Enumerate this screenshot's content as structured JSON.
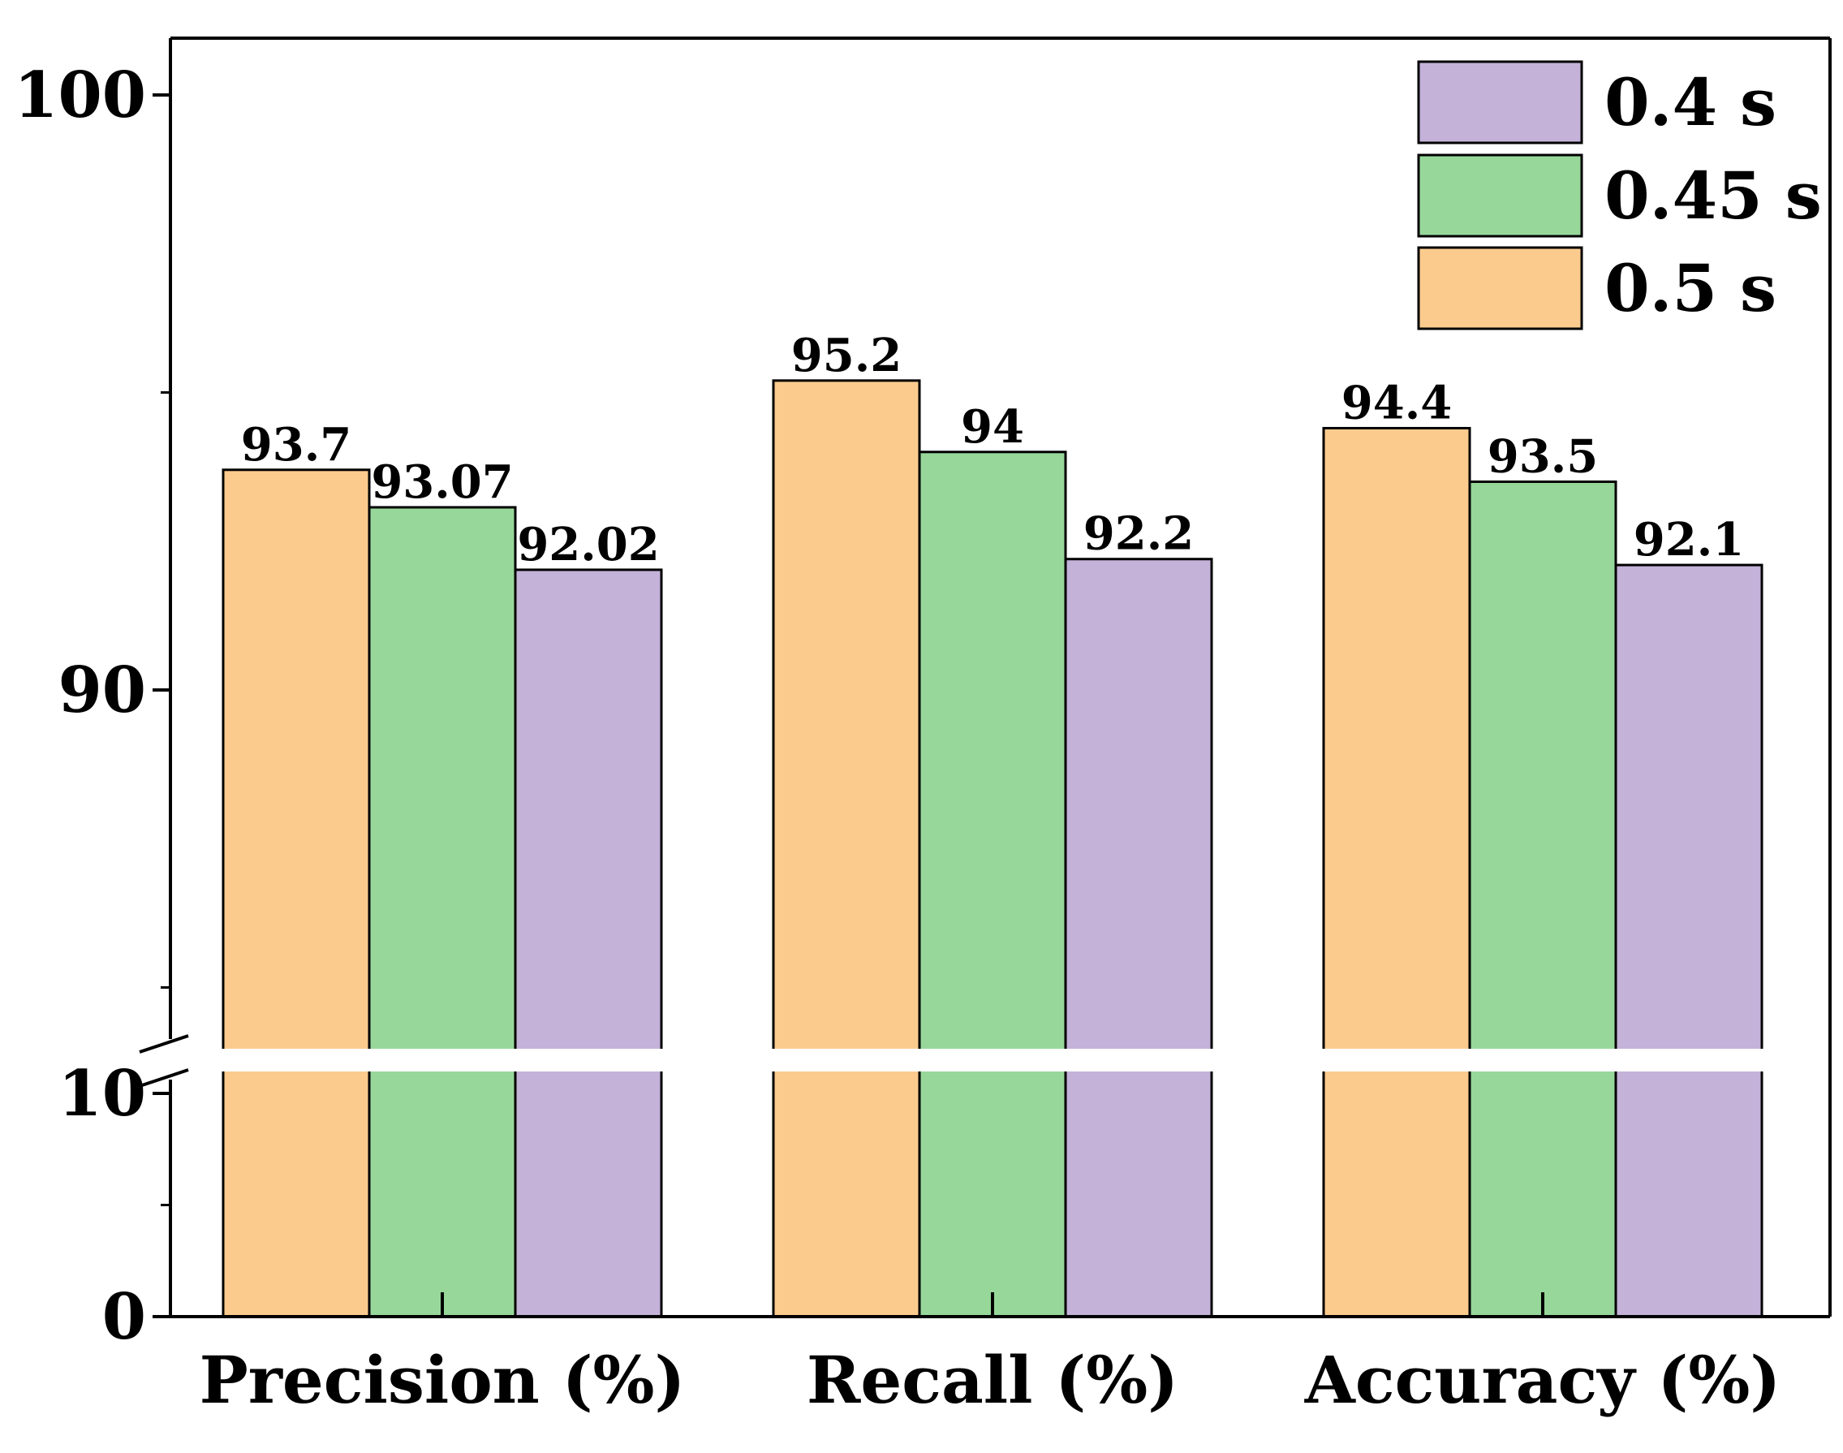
{
  "chart_data": {
    "type": "bar",
    "title": "",
    "xlabel": "",
    "ylabel": "",
    "categories": [
      "Precision (%)",
      "Recall (%)",
      "Accuracy (%)"
    ],
    "series": [
      {
        "name": "0.5 s",
        "color": "#FBCB8E",
        "values": [
          93.7,
          95.2,
          94.4
        ],
        "labels": [
          "93.7",
          "95.2",
          "94.4"
        ]
      },
      {
        "name": "0.45 s",
        "color": "#97D89A",
        "values": [
          93.07,
          94,
          93.5
        ],
        "labels": [
          "93.07",
          "94",
          "93.5"
        ]
      },
      {
        "name": "0.4 s",
        "color": "#C4B2D9",
        "values": [
          92.02,
          92.2,
          92.1
        ],
        "labels": [
          "92.02",
          "92.2",
          "92.1"
        ]
      }
    ],
    "legend_order": [
      "0.4 s",
      "0.45 s",
      "0.5 s"
    ],
    "legend_position": "top-right",
    "axis_break": {
      "lower_range": [
        0,
        10
      ],
      "upper_range": [
        85,
        101
      ]
    },
    "yticks": [
      {
        "value": 0,
        "label": "0"
      },
      {
        "value": 10,
        "label": "10"
      },
      {
        "value": 90,
        "label": "90"
      },
      {
        "value": 100,
        "label": "100"
      }
    ],
    "ylim": [
      0,
      101
    ],
    "grid": false
  }
}
